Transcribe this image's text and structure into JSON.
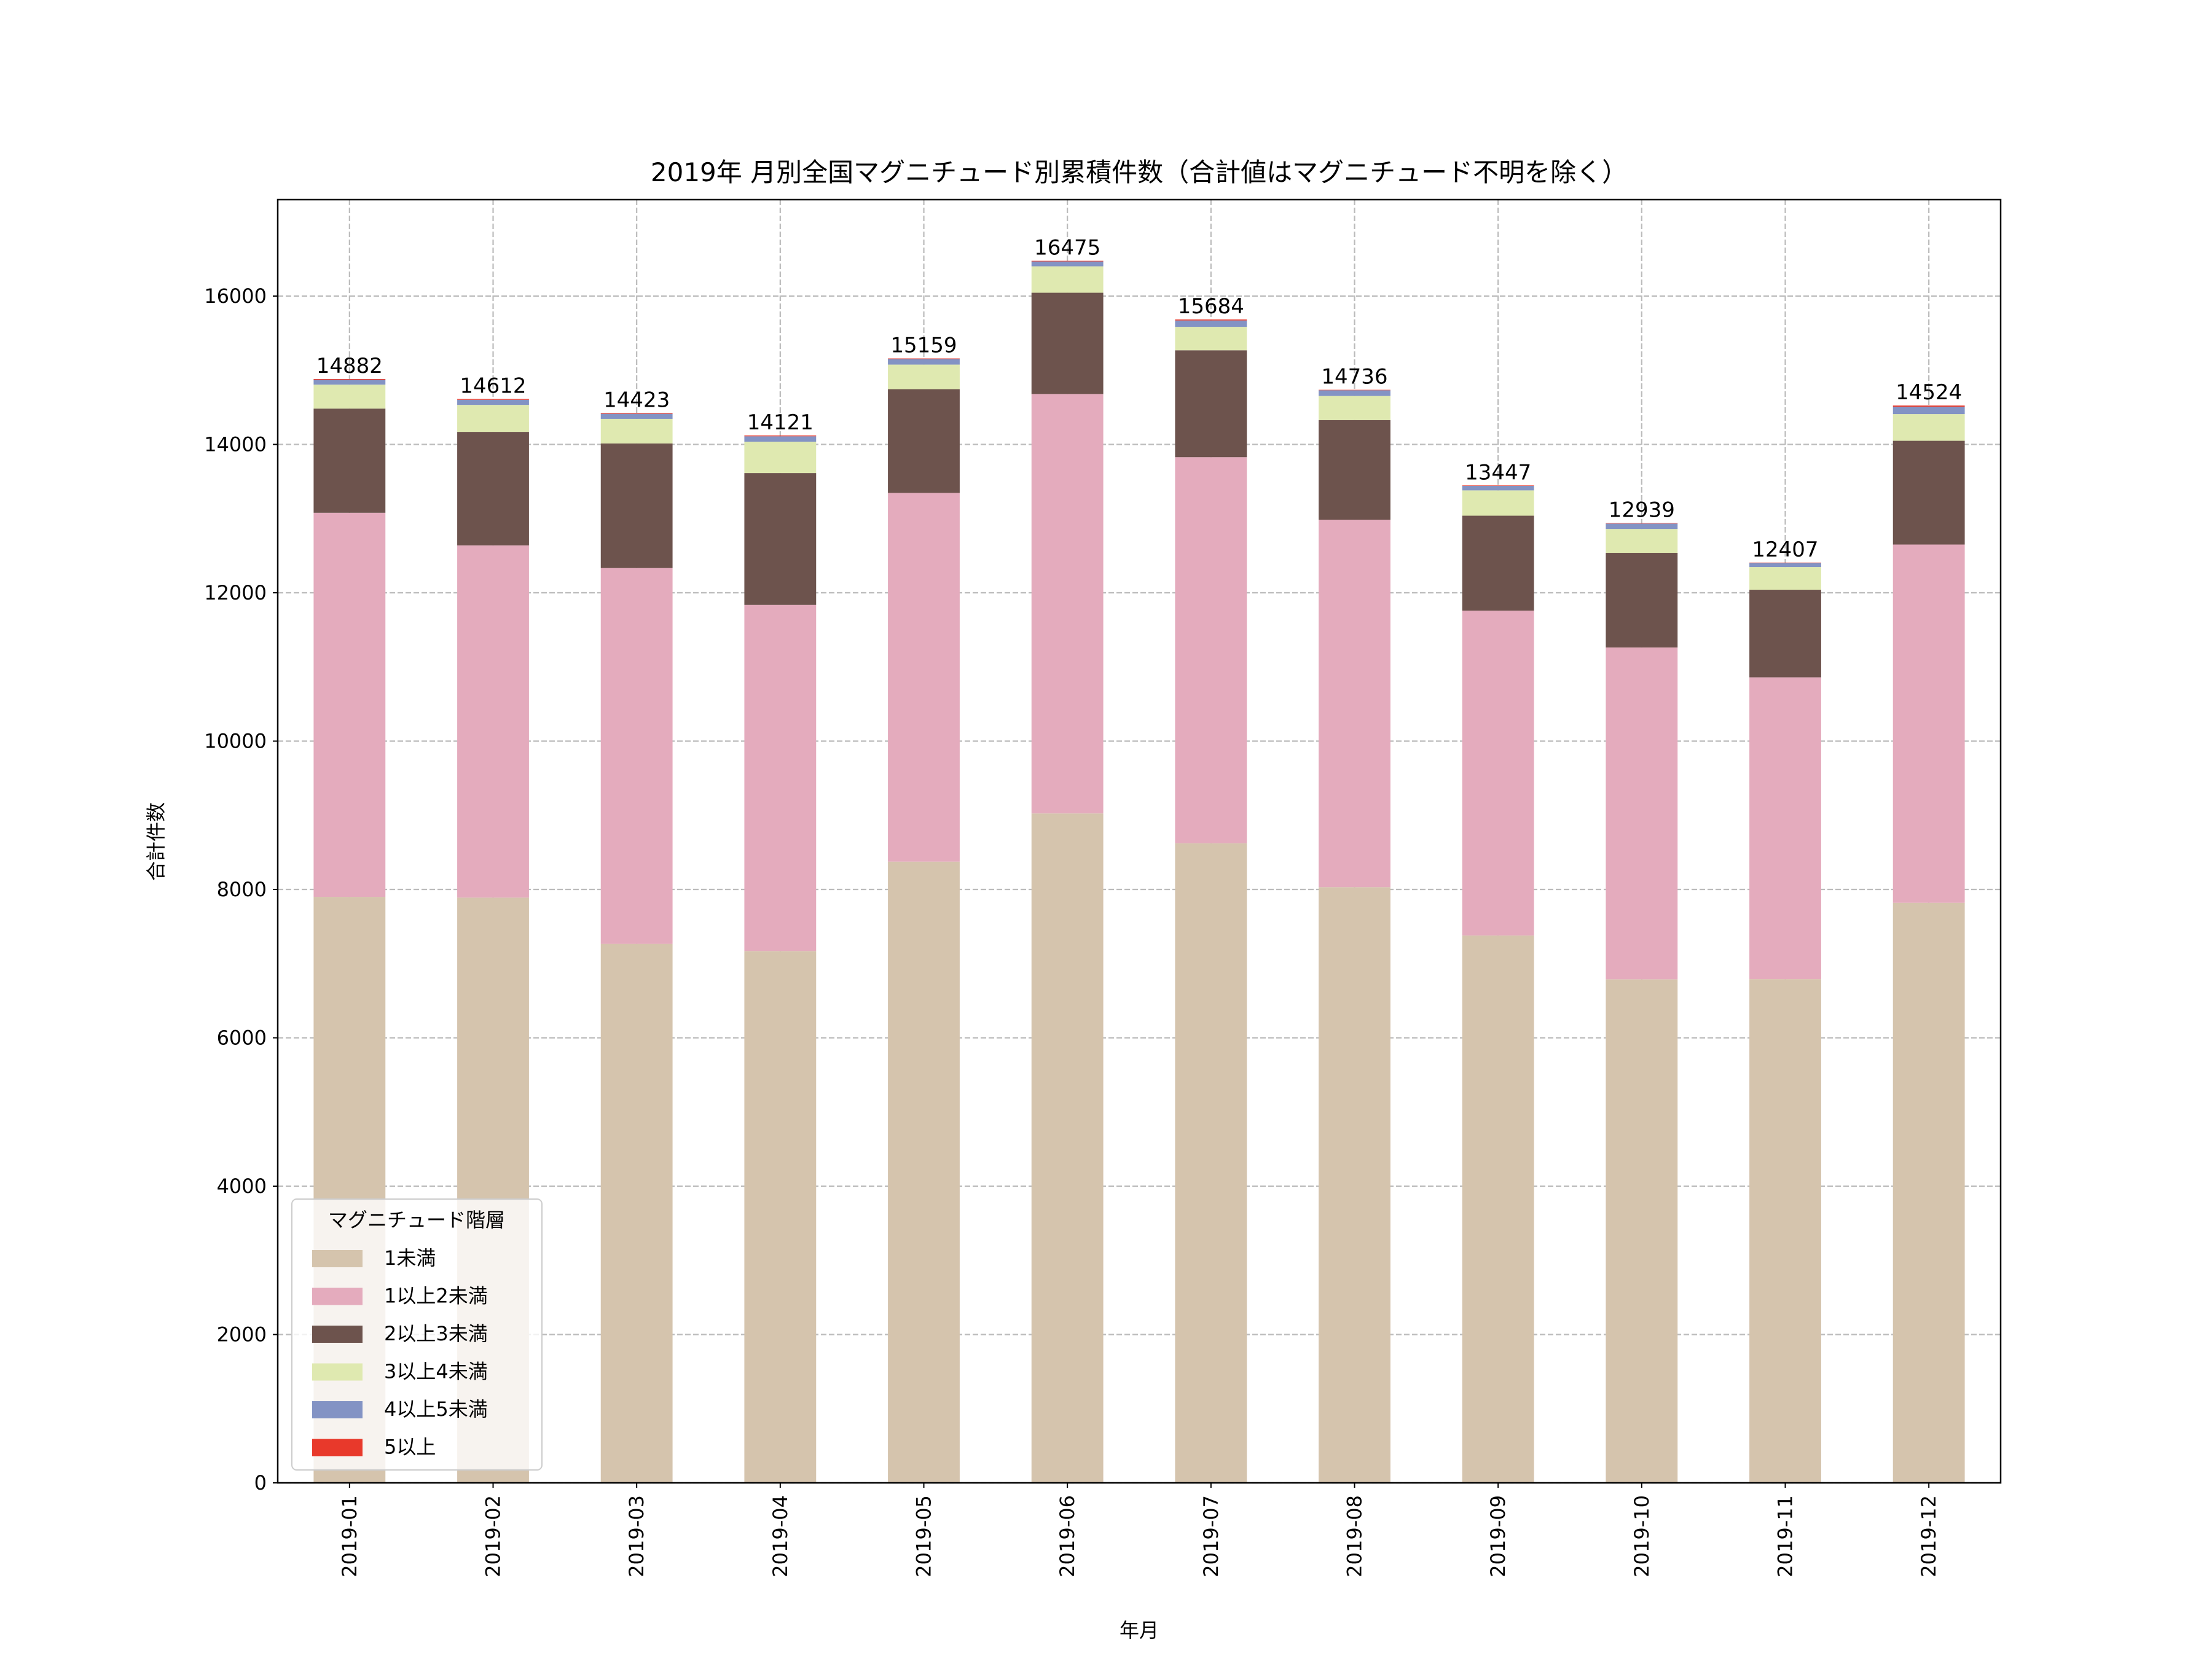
{
  "chart_data": {
    "type": "bar",
    "stacked": true,
    "title": "2019年 月別全国マグニチュード別累積件数（合計値はマグニチュード不明を除く）",
    "xlabel": "年月",
    "ylabel": "合計件数",
    "ylim": [
      0,
      17300
    ],
    "yticks": [
      0,
      2000,
      4000,
      6000,
      8000,
      10000,
      12000,
      14000,
      16000
    ],
    "grid": true,
    "legend": {
      "title": "マグニチュード階層",
      "placement": "lower-left"
    },
    "categories": [
      "2019-01",
      "2019-02",
      "2019-03",
      "2019-04",
      "2019-05",
      "2019-06",
      "2019-07",
      "2019-08",
      "2019-09",
      "2019-10",
      "2019-11",
      "2019-12"
    ],
    "totals": [
      14882,
      14612,
      14423,
      14121,
      15159,
      16475,
      15684,
      14736,
      13447,
      12939,
      12407,
      14524
    ],
    "series": [
      {
        "name": "1未満",
        "color": "#d5c4ad",
        "values": [
          7900,
          7890,
          7266,
          7170,
          8375,
          9025,
          8623,
          8031,
          7380,
          6788,
          6790,
          7820
        ]
      },
      {
        "name": "1以上2未満",
        "color": "#e4abbd",
        "values": [
          5178,
          4749,
          5067,
          4666,
          4971,
          5655,
          5205,
          4954,
          4379,
          4474,
          4070,
          4830
        ]
      },
      {
        "name": "2以上3未満",
        "color": "#6d534d",
        "values": [
          1405,
          1530,
          1680,
          1778,
          1399,
          1365,
          1441,
          1343,
          1280,
          1276,
          1181,
          1399
        ]
      },
      {
        "name": "3以上4未満",
        "color": "#dfe9b0",
        "values": [
          323,
          364,
          331,
          423,
          331,
          356,
          316,
          325,
          341,
          322,
          306,
          360
        ]
      },
      {
        "name": "4以上5未満",
        "color": "#8393c4",
        "values": [
          66,
          69,
          69,
          72,
          75,
          66,
          86,
          77,
          61,
          73,
          54,
          99
        ]
      },
      {
        "name": "5以上",
        "color": "#e8392b",
        "values": [
          10,
          10,
          10,
          12,
          8,
          8,
          13,
          6,
          6,
          6,
          6,
          16
        ]
      }
    ]
  }
}
